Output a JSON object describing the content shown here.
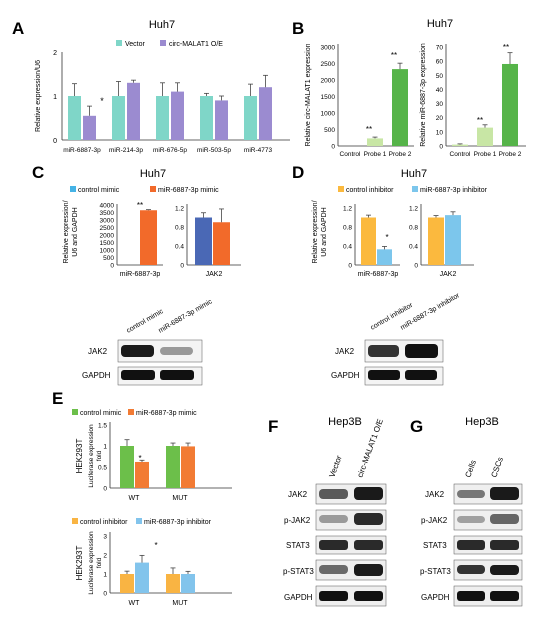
{
  "colors": {
    "vector": "#7fd6c8",
    "circ": "#9b8bd0",
    "control_mimic": "#45b3e6",
    "mir_mimic": "#f26a2a",
    "jak2_blue": "#4a68b5",
    "control_inhibitor": "#fbb93e",
    "mir_inhibitor": "#7cc6ec",
    "green_light": "#c8e6a5",
    "green": "#56b449",
    "e_control": "#6cbf4a",
    "e_mir": "#f27b34",
    "e_inh": "#f9b443",
    "e_mir_inh": "#82c4ec"
  },
  "panels": {
    "A": {
      "letter": "A",
      "title": "Huh7",
      "legend": [
        "Vector",
        "circ-MALAT1 O/E"
      ],
      "ylabel": "Relative expression/U6",
      "yticks": [
        "0",
        "1",
        "2"
      ],
      "sig": "*"
    },
    "B": {
      "letter": "B",
      "title": "Huh7",
      "ylabel1": "Relative circ-MALAT1 expression",
      "ylabel2": "Relative miR-6887-3p expression",
      "yticks1": [
        "0",
        "500",
        "1000",
        "1500",
        "2000",
        "2500",
        "3000"
      ],
      "yticks2": [
        "0",
        "10",
        "20",
        "30",
        "40",
        "50",
        "60",
        "70"
      ],
      "cats": [
        "Control",
        "Probe 1",
        "Probe 2"
      ],
      "sig": "**"
    },
    "C": {
      "letter": "C",
      "title": "Huh7",
      "legend": [
        "control mimic",
        "miR-6887-3p mimic"
      ],
      "ylabel1": "Relative expression/",
      "ylabel2": "U6 and GAPDH",
      "yticks1": [
        "0",
        "500",
        "1000",
        "1500",
        "2000",
        "2500",
        "3000",
        "3500",
        "4000"
      ],
      "yticks2": [
        "0",
        "0.4",
        "0.8",
        "1.2"
      ],
      "xl1": "miR-6887-3p",
      "xl2": "JAK2",
      "sig": "**"
    },
    "D": {
      "letter": "D",
      "title": "Huh7",
      "legend": [
        "control inhibitor",
        "miR-6887-3p inhibitor"
      ],
      "ylabel1": "Relative expression/",
      "ylabel2": "U6 and GAPDH",
      "yticks1": [
        "0",
        "0.4",
        "0.8",
        "1.2"
      ],
      "yticks2": [
        "0",
        "0.4",
        "0.8",
        "1.2"
      ],
      "xl1": "miR-6887-3p",
      "xl2": "JAK2",
      "sig": "*"
    },
    "E": {
      "letter": "E",
      "legend1": [
        "control mimic",
        "miR-6887-3p mimic"
      ],
      "legend2": [
        "control inhibitor",
        "miR-6887-3p inhibitor"
      ],
      "cell": "HEK293T",
      "ylabel1": "Luciferase expression",
      "ylabel2": "fold",
      "yticks1": [
        "0",
        "0.5",
        "1",
        "1.5"
      ],
      "yticks2": [
        "0",
        "1",
        "2",
        "3"
      ],
      "cats": [
        "WT",
        "MUT"
      ],
      "sig": "*"
    },
    "F": {
      "letter": "F",
      "title": "Hep3B",
      "lanes": [
        "Vector",
        "circ-MALAT1 O/E"
      ],
      "rows": [
        "JAK2",
        "p-JAK2",
        "STAT3",
        "p-STAT3",
        "GAPDH"
      ]
    },
    "G": {
      "letter": "G",
      "title": "Hep3B",
      "lanes": [
        "Cells",
        "CSCs"
      ],
      "rows": [
        "JAK2",
        "p-JAK2",
        "STAT3",
        "p-STAT3",
        "GAPDH"
      ]
    },
    "blot_C": {
      "lanes": [
        "control mimic",
        "miR-6887-3p mimic"
      ],
      "rows": [
        "JAK2",
        "GAPDH"
      ]
    },
    "blot_D": {
      "lanes": [
        "control inhibitor",
        "miR-6887-3p inhibitor"
      ],
      "rows": [
        "JAK2",
        "GAPDH"
      ]
    }
  },
  "chart_data": [
    {
      "panel": "A",
      "type": "bar",
      "categories": [
        "miR-6887-3p",
        "miR-214-3p",
        "miR-676-5p",
        "miR-503-5p",
        "miR-4773"
      ],
      "series": [
        {
          "name": "Vector",
          "values": [
            1.0,
            1.0,
            1.0,
            1.0,
            1.0
          ],
          "err": [
            0.28,
            0.33,
            0.3,
            0.06,
            0.27
          ]
        },
        {
          "name": "circ-MALAT1 O/E",
          "values": [
            0.55,
            1.3,
            1.1,
            0.9,
            1.2
          ],
          "err": [
            0.22,
            0.06,
            0.2,
            0.1,
            0.27
          ]
        }
      ],
      "ylim": [
        0,
        2
      ]
    },
    {
      "panel": "B-left",
      "type": "bar",
      "categories": [
        "Control",
        "Probe 1",
        "Probe 2"
      ],
      "values": [
        0,
        230,
        2330
      ],
      "err": [
        0,
        40,
        180
      ],
      "ylim": [
        0,
        3000
      ]
    },
    {
      "panel": "B-right",
      "type": "bar",
      "categories": [
        "Control",
        "Probe 1",
        "Probe 2"
      ],
      "values": [
        1,
        13,
        58
      ],
      "err": [
        0.5,
        2,
        8
      ],
      "ylim": [
        0,
        70
      ]
    },
    {
      "panel": "C-left",
      "type": "bar",
      "categories": [
        "miR-6887-3p"
      ],
      "series": [
        {
          "name": "control mimic",
          "values": [
            1
          ]
        },
        {
          "name": "miR-6887-3p mimic",
          "values": [
            3650
          ]
        }
      ],
      "err": [
        0,
        40
      ],
      "ylim": [
        0,
        4000
      ]
    },
    {
      "panel": "C-right",
      "type": "bar",
      "categories": [
        "JAK2"
      ],
      "series": [
        {
          "name": "control mimic",
          "values": [
            1.0
          ]
        },
        {
          "name": "miR-6887-3p mimic",
          "values": [
            0.9
          ]
        }
      ],
      "err": [
        0.1,
        0.28
      ],
      "ylim": [
        0,
        1.2
      ]
    },
    {
      "panel": "D-left",
      "type": "bar",
      "categories": [
        "miR-6887-3p"
      ],
      "series": [
        {
          "name": "control inhibitor",
          "values": [
            1.0
          ]
        },
        {
          "name": "miR-6887-3p inhibitor",
          "values": [
            0.33
          ]
        }
      ],
      "err": [
        0.05,
        0.06
      ],
      "ylim": [
        0,
        1.2
      ]
    },
    {
      "panel": "D-right",
      "type": "bar",
      "categories": [
        "JAK2"
      ],
      "series": [
        {
          "name": "control inhibitor",
          "values": [
            1.0
          ]
        },
        {
          "name": "miR-6887-3p inhibitor",
          "values": [
            1.05
          ]
        }
      ],
      "err": [
        0.04,
        0.07
      ],
      "ylim": [
        0,
        1.2
      ]
    },
    {
      "panel": "E-top",
      "type": "bar",
      "categories": [
        "WT",
        "MUT"
      ],
      "series": [
        {
          "name": "control mimic",
          "values": [
            1.0,
            1.0
          ]
        },
        {
          "name": "miR-6887-3p mimic",
          "values": [
            0.62,
            0.99
          ]
        }
      ],
      "err": [
        [
          0.15,
          0.07
        ],
        [
          0.04,
          0.08
        ]
      ],
      "ylim": [
        0,
        1.5
      ]
    },
    {
      "panel": "E-bottom",
      "type": "bar",
      "categories": [
        "WT",
        "MUT"
      ],
      "series": [
        {
          "name": "control inhibitor",
          "values": [
            1.0,
            1.0
          ]
        },
        {
          "name": "miR-6887-3p inhibitor",
          "values": [
            1.6,
            1.0
          ]
        }
      ],
      "err": [
        [
          0.15,
          0.32
        ],
        [
          0.38,
          0.14
        ]
      ],
      "ylim": [
        0,
        3
      ]
    }
  ]
}
